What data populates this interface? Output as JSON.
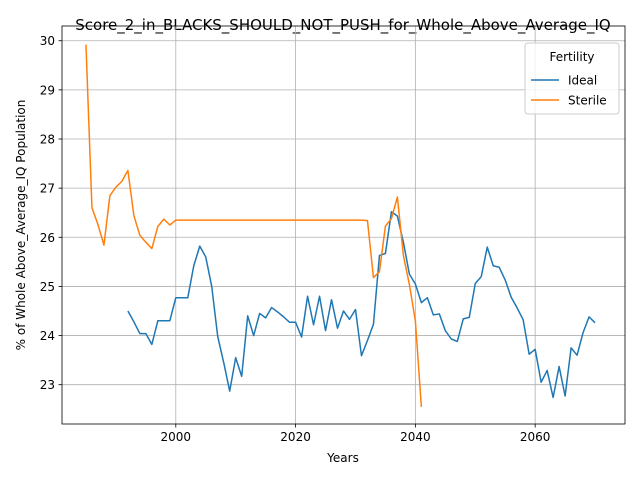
{
  "chart_data": {
    "type": "line",
    "title": "Score_2_in_BLACKS_SHOULD_NOT_PUSH_for_Whole_Above_Average_IQ",
    "xlabel": "Years",
    "ylabel": "% of Whole Above_Average_IQ Population",
    "xlim": [
      1981,
      2075
    ],
    "ylim": [
      22.2,
      30.3
    ],
    "xticks": [
      2000,
      2020,
      2040,
      2060
    ],
    "yticks": [
      23,
      24,
      25,
      26,
      27,
      28,
      29,
      30
    ],
    "grid": true,
    "legend": {
      "title": "Fertility",
      "placement": "top-right"
    },
    "series": [
      {
        "name": "Ideal",
        "color": "#1f77b4",
        "x": [
          1992,
          1993,
          1994,
          1995,
          1996,
          1997,
          1998,
          1999,
          2000,
          2001,
          2002,
          2003,
          2004,
          2005,
          2006,
          2007,
          2008,
          2009,
          2010,
          2011,
          2012,
          2013,
          2014,
          2015,
          2016,
          2017,
          2018,
          2019,
          2020,
          2021,
          2022,
          2023,
          2024,
          2025,
          2026,
          2027,
          2028,
          2029,
          2030,
          2031,
          2032,
          2033,
          2034,
          2035,
          2036,
          2037,
          2038,
          2039,
          2040,
          2041,
          2042,
          2043,
          2044,
          2045,
          2046,
          2047,
          2048,
          2049,
          2050,
          2051,
          2052,
          2053,
          2054,
          2055,
          2056,
          2057,
          2058,
          2059,
          2060,
          2061,
          2062,
          2063,
          2064,
          2065,
          2066,
          2067,
          2068,
          2069,
          2070
        ],
        "values": [
          24.5,
          24.28,
          24.04,
          24.04,
          23.82,
          24.3,
          24.3,
          24.3,
          24.77,
          24.77,
          24.77,
          25.42,
          25.82,
          25.6,
          25.0,
          23.98,
          23.45,
          22.87,
          23.55,
          23.17,
          24.4,
          24.0,
          24.45,
          24.36,
          24.57,
          24.48,
          24.38,
          24.27,
          24.27,
          23.97,
          24.8,
          24.22,
          24.8,
          24.1,
          24.73,
          24.15,
          24.5,
          24.33,
          24.53,
          23.59,
          23.9,
          24.23,
          25.63,
          25.67,
          26.52,
          26.43,
          25.9,
          25.25,
          25.05,
          24.67,
          24.77,
          24.42,
          24.44,
          24.1,
          23.93,
          23.88,
          24.34,
          24.37,
          25.06,
          25.2,
          25.8,
          25.42,
          25.39,
          25.13,
          24.78,
          24.56,
          24.32,
          23.62,
          23.72,
          23.05,
          23.29,
          22.74,
          23.37,
          22.77,
          23.75,
          23.6,
          24.06,
          24.38,
          24.26
        ]
      },
      {
        "name": "Sterile",
        "color": "#ff7f0e",
        "x": [
          1985,
          1986,
          1987,
          1988,
          1989,
          1990,
          1991,
          1992,
          1993,
          1994,
          1995,
          1996,
          1997,
          1998,
          1999,
          2000,
          2001,
          2002,
          2003,
          2004,
          2005,
          2006,
          2007,
          2008,
          2009,
          2010,
          2011,
          2012,
          2013,
          2014,
          2015,
          2016,
          2017,
          2018,
          2019,
          2020,
          2021,
          2022,
          2023,
          2024,
          2025,
          2026,
          2027,
          2028,
          2029,
          2030,
          2031,
          2032,
          2033,
          2034,
          2035,
          2036,
          2037,
          2038,
          2039,
          2040,
          2041
        ],
        "values": [
          29.92,
          26.6,
          26.26,
          25.84,
          26.85,
          27.02,
          27.14,
          27.36,
          26.44,
          26.04,
          25.9,
          25.77,
          26.22,
          26.37,
          26.25,
          26.35,
          26.35,
          26.35,
          26.35,
          26.35,
          26.35,
          26.35,
          26.35,
          26.35,
          26.35,
          26.35,
          26.35,
          26.35,
          26.35,
          26.35,
          26.35,
          26.35,
          26.35,
          26.35,
          26.35,
          26.35,
          26.35,
          26.35,
          26.35,
          26.35,
          26.35,
          26.35,
          26.35,
          26.35,
          26.35,
          26.35,
          26.35,
          26.34,
          25.18,
          25.3,
          26.23,
          26.38,
          26.82,
          25.63,
          25.04,
          24.3,
          22.55
        ]
      }
    ]
  }
}
